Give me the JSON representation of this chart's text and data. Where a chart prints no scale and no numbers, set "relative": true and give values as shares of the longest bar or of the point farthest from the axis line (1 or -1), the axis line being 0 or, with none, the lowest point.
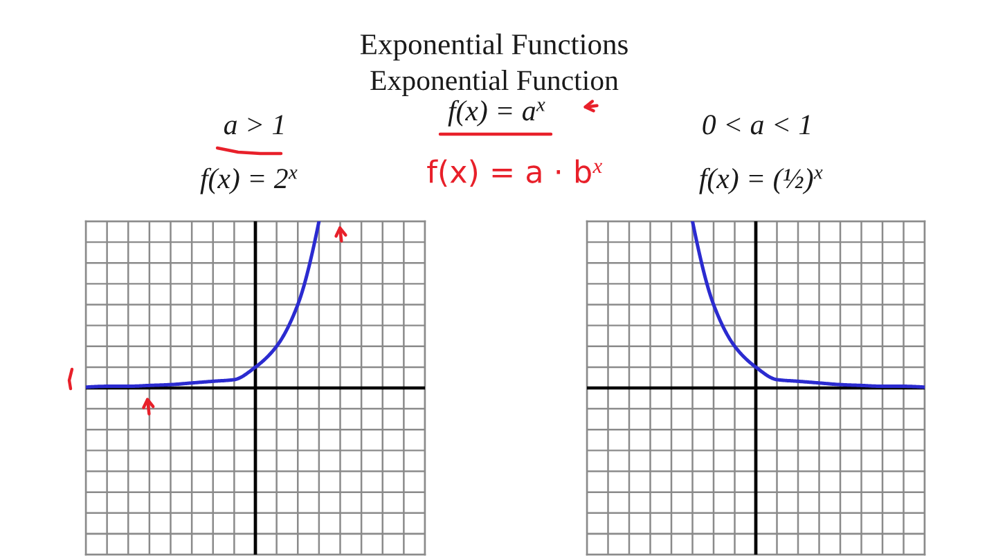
{
  "chart_data": [
    {
      "type": "other",
      "title": "Exponential Functions",
      "subtitle": "Exponential Function",
      "annotations": [
        "f(x) = a$^{x}$",
        "f(x) = a · b$^{x}$"
      ]
    },
    {
      "type": "line",
      "title": "a > 1",
      "subtitle": "f(x) = 2$^{x}$",
      "relative": true,
      "categories": [
        null,
        null,
        null,
        null,
        null,
        null,
        null,
        null,
        null,
        null,
        null,
        null,
        null,
        null,
        null,
        null,
        null
      ],
      "series": [
        {
          "color": "#2b2bd0",
          "values": [
            0.005,
            0.01,
            0.01,
            0.015,
            0.02,
            0.03,
            0.04,
            0.05,
            0.125,
            0.25,
            0.5,
            1,
            null,
            null,
            null,
            null,
            null
          ]
        }
      ],
      "grid": true,
      "line_style": "solid"
    },
    {
      "type": "line",
      "title": "0 < a < 1",
      "subtitle": "f(x) = (½)$^{x}$",
      "relative": true,
      "categories": [
        null,
        null,
        null,
        null,
        null,
        null,
        null,
        null,
        null,
        null,
        null,
        null,
        null,
        null,
        null,
        null,
        null
      ],
      "series": [
        {
          "color": "#2b2bd0",
          "values": [
            null,
            null,
            null,
            null,
            null,
            1,
            0.5,
            0.25,
            0.125,
            0.05,
            0.04,
            0.03,
            0.02,
            0.015,
            0.01,
            0.01,
            0.005
          ]
        }
      ],
      "grid": true,
      "line_style": "solid"
    }
  ]
}
